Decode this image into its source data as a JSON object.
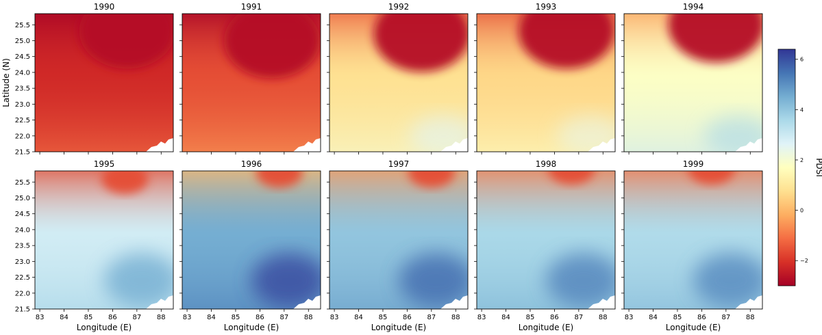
{
  "chart_data": {
    "type": "heatmap",
    "layout": {
      "rows": 2,
      "cols": 5
    },
    "panels": [
      {
        "title": "1990",
        "mean_pdsi": -2.2,
        "drought_core": [
          86.6,
          25.3
        ]
      },
      {
        "title": "1991",
        "mean_pdsi": -1.6,
        "drought_core": [
          86.5,
          25.0
        ]
      },
      {
        "title": "1992",
        "mean_pdsi": 0.8,
        "drought_core": [
          86.6,
          25.2
        ]
      },
      {
        "title": "1993",
        "mean_pdsi": 0.6,
        "drought_core": [
          86.5,
          25.3
        ]
      },
      {
        "title": "1994",
        "mean_pdsi": 1.8,
        "drought_core": [
          86.6,
          25.5
        ]
      },
      {
        "title": "1995",
        "mean_pdsi": 2.9,
        "drought_core": [
          86.5,
          25.6
        ]
      },
      {
        "title": "1996",
        "mean_pdsi": 4.5,
        "drought_core": [
          86.8,
          25.8
        ]
      },
      {
        "title": "1997",
        "mean_pdsi": 4.0,
        "drought_core": [
          87.0,
          25.8
        ]
      },
      {
        "title": "1998",
        "mean_pdsi": 3.6,
        "drought_core": [
          86.7,
          25.9
        ]
      },
      {
        "title": "1999",
        "mean_pdsi": 3.5,
        "drought_core": [
          86.4,
          25.9
        ]
      }
    ],
    "xlabel": "Longitude (E)",
    "ylabel": "Latitude (N)",
    "xticks": [
      "83",
      "84",
      "85",
      "86",
      "87",
      "88"
    ],
    "yticks": [
      "21.5",
      "22.0",
      "22.5",
      "23.0",
      "23.5",
      "24.0",
      "24.5",
      "25.0",
      "25.5"
    ],
    "xlim": [
      82.8,
      88.5
    ],
    "ylim": [
      21.5,
      25.85
    ],
    "colorbar": {
      "label": "PDSI",
      "range": [
        -3.0,
        6.4
      ],
      "ticks": [
        "6",
        "4",
        "2",
        "0",
        "−2"
      ],
      "tick_values": [
        6,
        4,
        2,
        0,
        -2
      ],
      "colormap": "RdYlBu",
      "colors": [
        "#a50026",
        "#d73027",
        "#f46d43",
        "#fdae61",
        "#fee090",
        "#ffffbf",
        "#e0f3f8",
        "#abd9e9",
        "#74add1",
        "#4575b4",
        "#313695"
      ]
    }
  }
}
